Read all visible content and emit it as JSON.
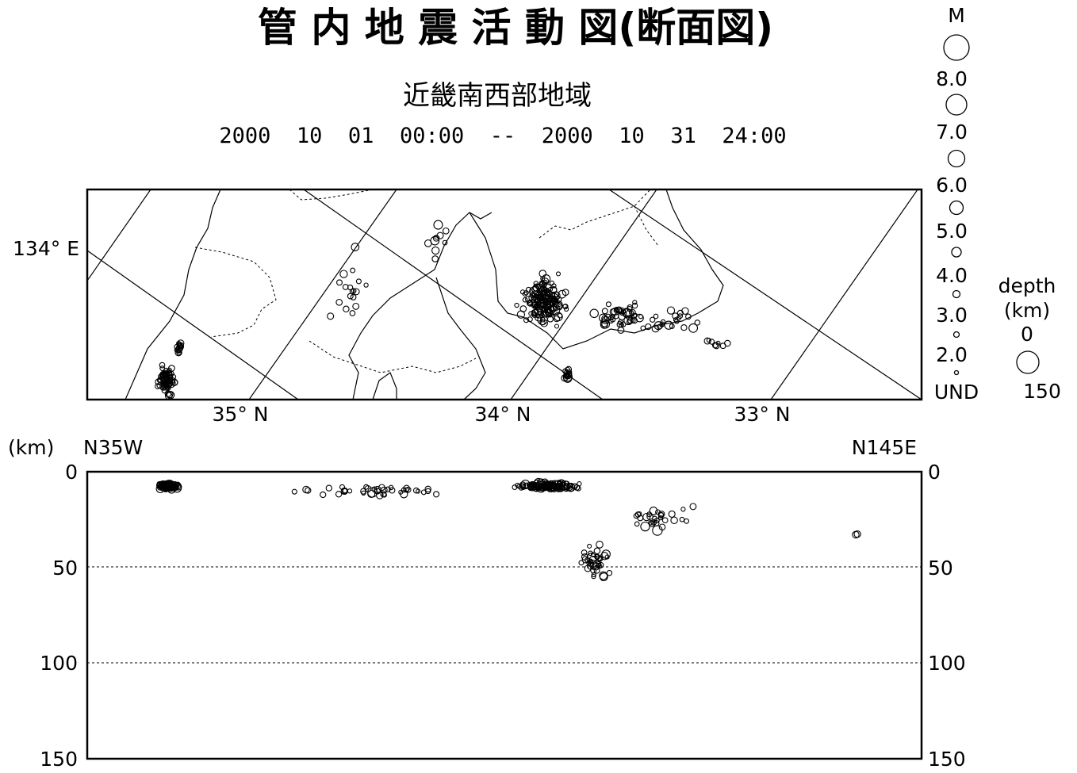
{
  "header": {
    "title": "管 内 地 震 活 動 図(断面図)",
    "region": "近畿南西部地域",
    "period": "2000  10  01  00:00  --  2000  10  31  24:00"
  },
  "map": {
    "lon_label": "134° E",
    "lat_labels": [
      "35° N",
      "34° N",
      "33° N"
    ]
  },
  "section": {
    "km_label": "(km)",
    "left_end": "N35W",
    "right_end": "N145E",
    "depth_ticks": [
      "0",
      "50",
      "100",
      "150"
    ]
  },
  "legend": {
    "magnitude_title": "M",
    "magnitude_labels": [
      "8.0",
      "7.0",
      "6.0",
      "5.0",
      "4.0",
      "3.0",
      "2.0",
      "UND"
    ],
    "depth_title_1": "depth",
    "depth_title_2": "(km)",
    "depth_min": "0",
    "depth_max": "150"
  },
  "colors": {
    "ink": "#000000",
    "background": "#ffffff"
  }
}
